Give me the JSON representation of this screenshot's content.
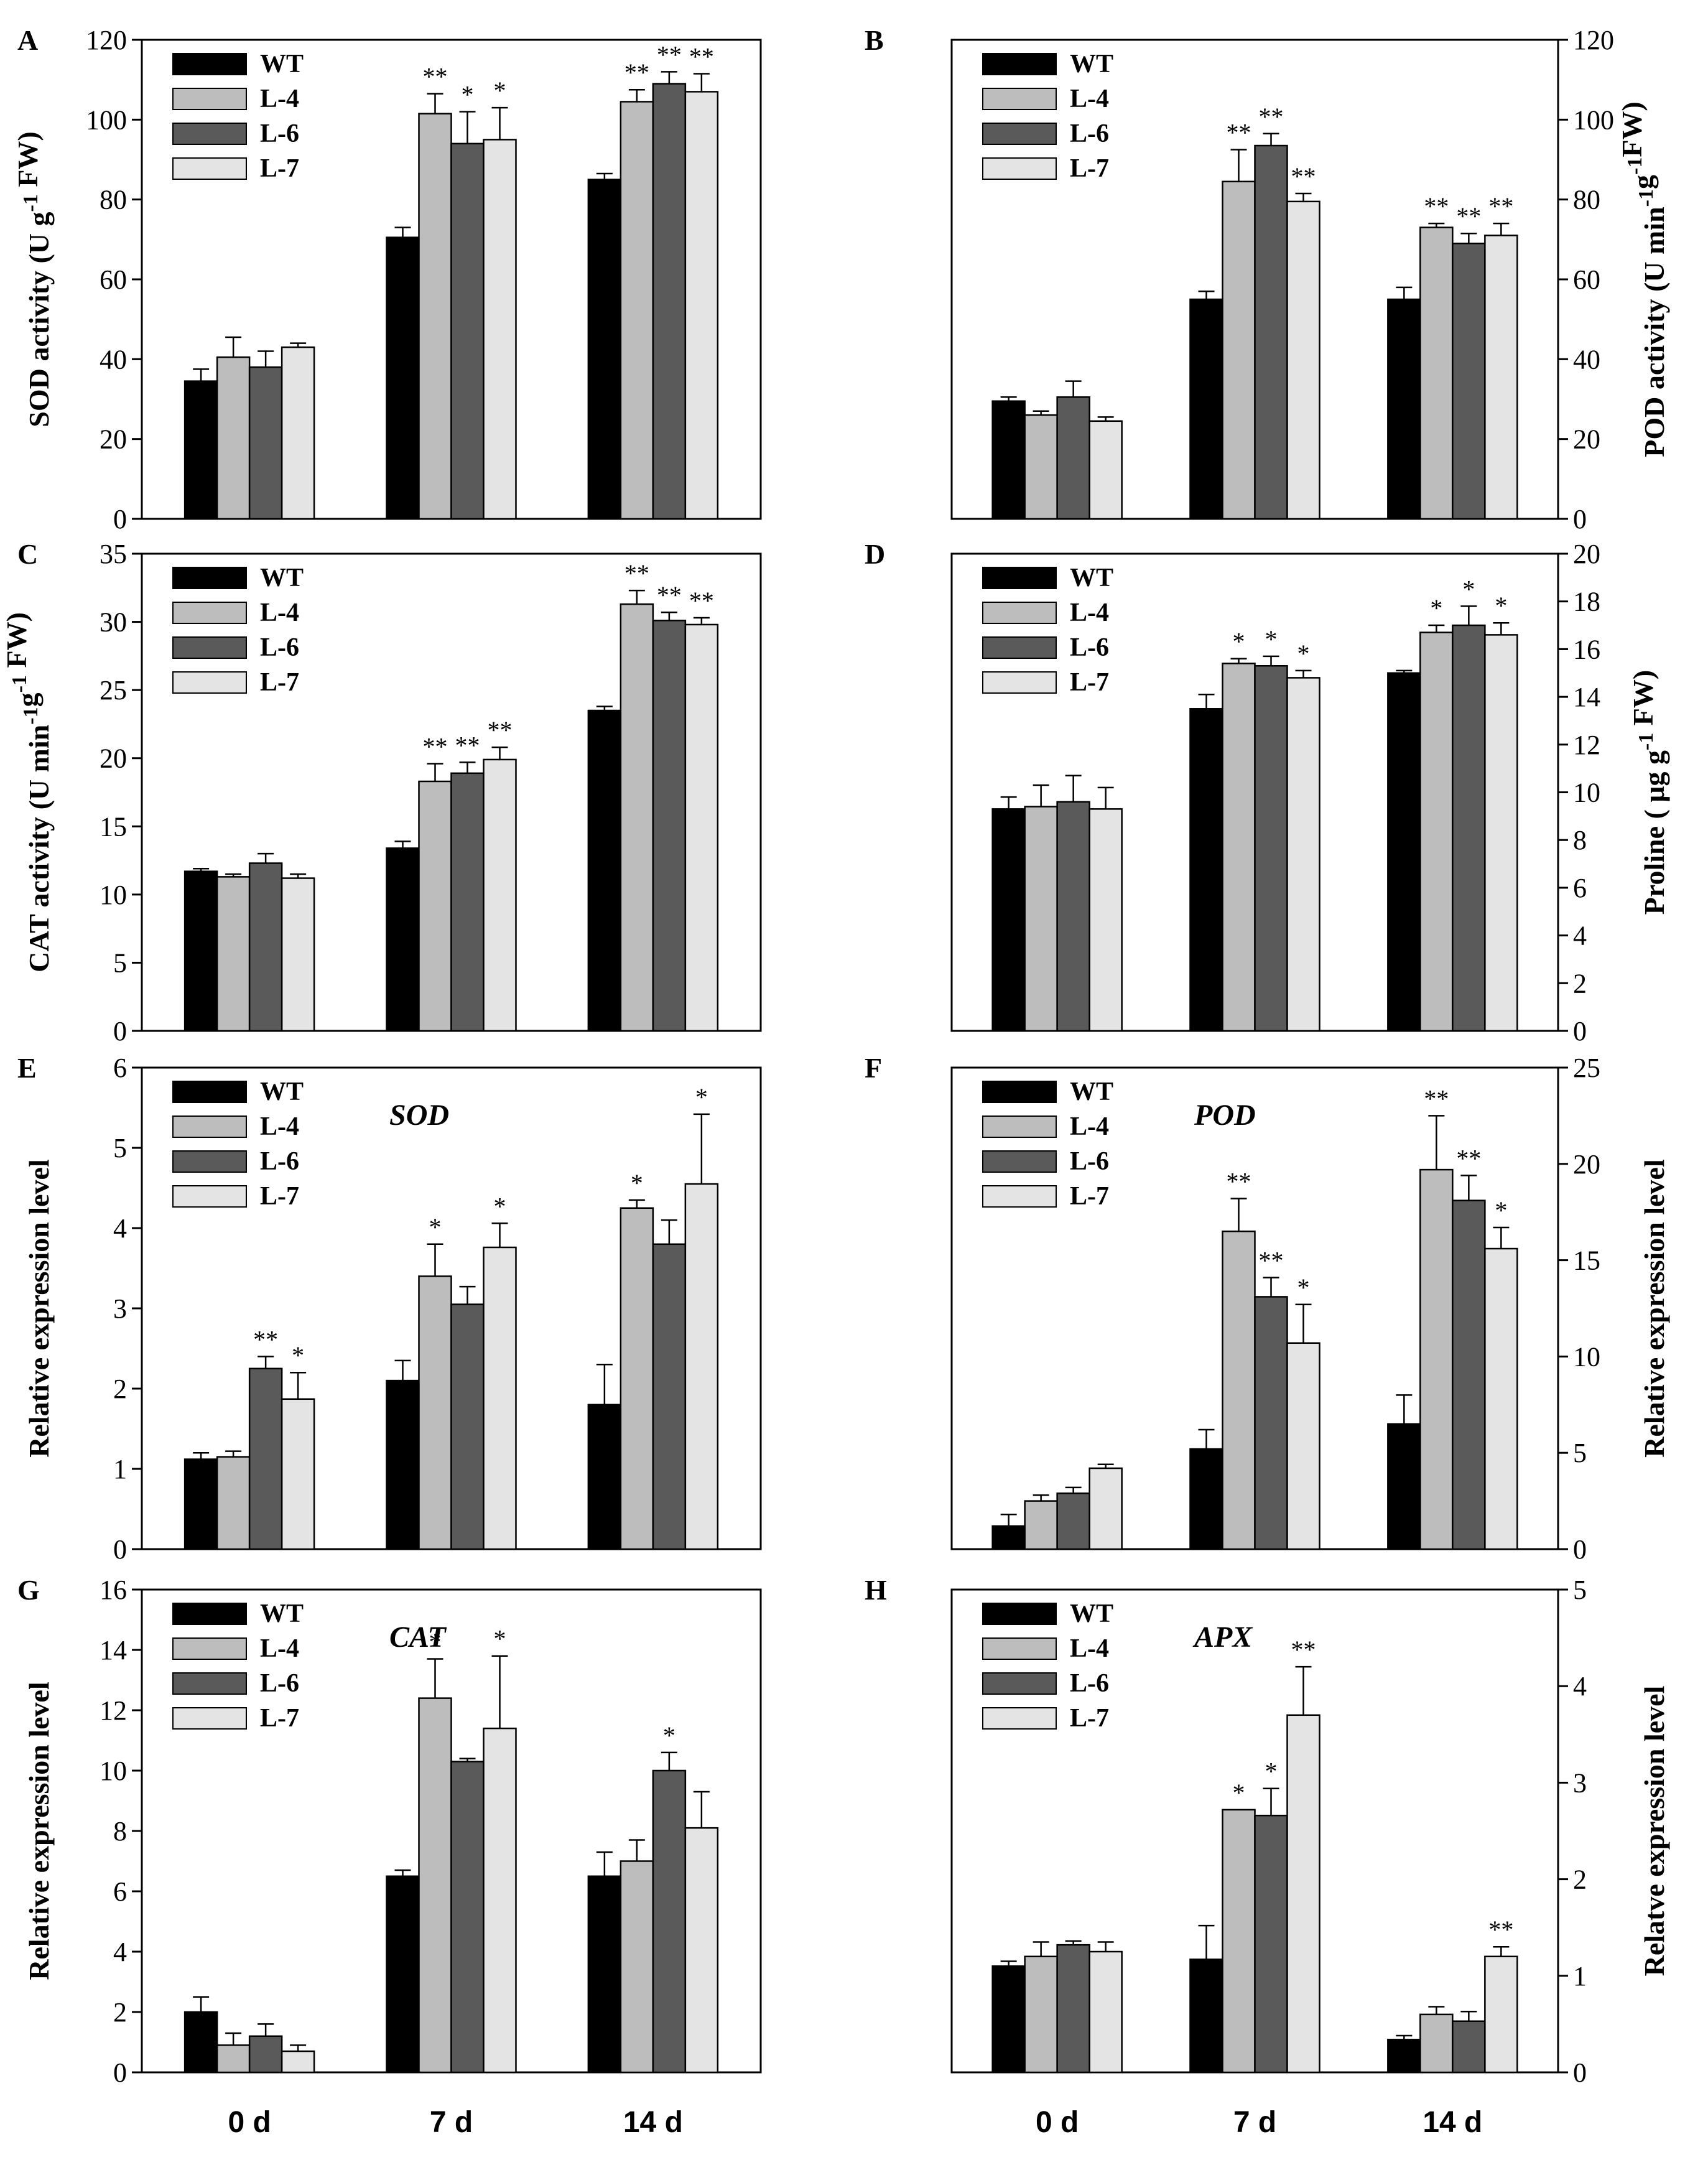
{
  "colors": {
    "WT": "#000000",
    "L-4": "#bdbdbd",
    "L-6": "#5a5a5a",
    "L-7": "#e4e4e4",
    "stroke": "#000000"
  },
  "chart_data": [
    {
      "panel": "A",
      "type": "bar",
      "title": "",
      "categories": [
        "0 d",
        "7 d",
        "14 d"
      ],
      "series": [
        {
          "name": "WT",
          "values": [
            34.5,
            70.5,
            85
          ],
          "errors": [
            3,
            2.5,
            1.5
          ],
          "sig": [
            "",
            "",
            ""
          ]
        },
        {
          "name": "L-4",
          "values": [
            40.5,
            101.5,
            104.5
          ],
          "errors": [
            5,
            5,
            3
          ],
          "sig": [
            "",
            "**",
            "**"
          ]
        },
        {
          "name": "L-6",
          "values": [
            38,
            94,
            109
          ],
          "errors": [
            4,
            8,
            3
          ],
          "sig": [
            "",
            "*",
            "**"
          ]
        },
        {
          "name": "L-7",
          "values": [
            43,
            95,
            107
          ],
          "errors": [
            1,
            8,
            4.5
          ],
          "sig": [
            "",
            "*",
            "**"
          ]
        }
      ],
      "ylabel": "SOD activity (U g-1 FW)",
      "ylim": [
        0,
        120
      ],
      "yticks": [
        0,
        20,
        40,
        60,
        80,
        100,
        120
      ],
      "axis_side": "left",
      "legend": "top-left"
    },
    {
      "panel": "B",
      "type": "bar",
      "title": "",
      "categories": [
        "0 d",
        "7 d",
        "14 d"
      ],
      "series": [
        {
          "name": "WT",
          "values": [
            29.5,
            55,
            55
          ],
          "errors": [
            1,
            2,
            3
          ],
          "sig": [
            "",
            "",
            ""
          ]
        },
        {
          "name": "L-4",
          "values": [
            26,
            84.5,
            73
          ],
          "errors": [
            1,
            8,
            1
          ],
          "sig": [
            "",
            "**",
            "**"
          ]
        },
        {
          "name": "L-6",
          "values": [
            30.5,
            93.5,
            69
          ],
          "errors": [
            4,
            3,
            2.5
          ],
          "sig": [
            "",
            "**",
            "**"
          ]
        },
        {
          "name": "L-7",
          "values": [
            24.5,
            79.5,
            71
          ],
          "errors": [
            1,
            2,
            3
          ],
          "sig": [
            "",
            "**",
            "**"
          ]
        }
      ],
      "ylabel": "POD activity (U min-1g-1FW)",
      "ylim": [
        0,
        120
      ],
      "yticks": [
        0,
        20,
        40,
        60,
        80,
        100,
        120
      ],
      "axis_side": "right",
      "legend": "top-left"
    },
    {
      "panel": "C",
      "type": "bar",
      "title": "",
      "categories": [
        "0 d",
        "7 d",
        "14 d"
      ],
      "series": [
        {
          "name": "WT",
          "values": [
            11.7,
            13.4,
            23.5
          ],
          "errors": [
            0.2,
            0.5,
            0.3
          ],
          "sig": [
            "",
            "",
            ""
          ]
        },
        {
          "name": "L-4",
          "values": [
            11.3,
            18.3,
            31.3
          ],
          "errors": [
            0.2,
            1.3,
            1
          ],
          "sig": [
            "",
            "**",
            "**"
          ]
        },
        {
          "name": "L-6",
          "values": [
            12.3,
            18.9,
            30.1
          ],
          "errors": [
            0.7,
            0.8,
            0.6
          ],
          "sig": [
            "",
            "**",
            "**"
          ]
        },
        {
          "name": "L-7",
          "values": [
            11.2,
            19.9,
            29.8
          ],
          "errors": [
            0.3,
            0.9,
            0.5
          ],
          "sig": [
            "",
            "**",
            "**"
          ]
        }
      ],
      "ylabel": "CAT activity (U min-1g-1 FW)",
      "ylim": [
        0,
        35
      ],
      "yticks": [
        0,
        5,
        10,
        15,
        20,
        25,
        30,
        35
      ],
      "axis_side": "left",
      "legend": "top-left"
    },
    {
      "panel": "D",
      "type": "bar",
      "title": "",
      "categories": [
        "0 d",
        "7 d",
        "14 d"
      ],
      "series": [
        {
          "name": "WT",
          "values": [
            9.3,
            13.5,
            15
          ],
          "errors": [
            0.5,
            0.6,
            0.1
          ],
          "sig": [
            "",
            "",
            ""
          ]
        },
        {
          "name": "L-4",
          "values": [
            9.4,
            15.4,
            16.7
          ],
          "errors": [
            0.9,
            0.2,
            0.3
          ],
          "sig": [
            "",
            "*",
            "*"
          ]
        },
        {
          "name": "L-6",
          "values": [
            9.6,
            15.3,
            17
          ],
          "errors": [
            1.1,
            0.4,
            0.8
          ],
          "sig": [
            "",
            "*",
            "*"
          ]
        },
        {
          "name": "L-7",
          "values": [
            9.3,
            14.8,
            16.6
          ],
          "errors": [
            0.9,
            0.3,
            0.5
          ],
          "sig": [
            "",
            "*",
            "*"
          ]
        }
      ],
      "ylabel": "Proline ( μg g-1 FW)",
      "ylim": [
        0,
        20
      ],
      "yticks": [
        0,
        2,
        4,
        6,
        8,
        10,
        12,
        14,
        16,
        18,
        20
      ],
      "axis_side": "right",
      "legend": "top-left"
    },
    {
      "panel": "E",
      "type": "bar",
      "title": "SOD",
      "categories": [
        "0 d",
        "7 d",
        "14 d"
      ],
      "series": [
        {
          "name": "WT",
          "values": [
            1.12,
            2.1,
            1.8
          ],
          "errors": [
            0.08,
            0.25,
            0.5
          ],
          "sig": [
            "",
            "",
            ""
          ]
        },
        {
          "name": "L-4",
          "values": [
            1.15,
            3.4,
            4.25
          ],
          "errors": [
            0.07,
            0.4,
            0.1
          ],
          "sig": [
            "",
            "*",
            "*"
          ]
        },
        {
          "name": "L-6",
          "values": [
            2.25,
            3.05,
            3.8
          ],
          "errors": [
            0.15,
            0.22,
            0.3
          ],
          "sig": [
            "**",
            "",
            ""
          ]
        },
        {
          "name": "L-7",
          "values": [
            1.87,
            3.76,
            4.55
          ],
          "errors": [
            0.33,
            0.3,
            0.87
          ],
          "sig": [
            "*",
            "*",
            "*"
          ]
        }
      ],
      "ylabel": "Relative expression level",
      "ylim": [
        0,
        6
      ],
      "yticks": [
        0,
        1,
        2,
        3,
        4,
        5,
        6
      ],
      "axis_side": "left",
      "legend": "top-left"
    },
    {
      "panel": "F",
      "type": "bar",
      "title": "POD",
      "categories": [
        "0 d",
        "7 d",
        "14 d"
      ],
      "series": [
        {
          "name": "WT",
          "values": [
            1.2,
            5.2,
            6.5
          ],
          "errors": [
            0.6,
            1,
            1.5
          ],
          "sig": [
            "",
            "",
            ""
          ]
        },
        {
          "name": "L-4",
          "values": [
            2.5,
            16.5,
            19.7
          ],
          "errors": [
            0.3,
            1.7,
            2.8
          ],
          "sig": [
            "",
            "**",
            "**"
          ]
        },
        {
          "name": "L-6",
          "values": [
            2.9,
            13.1,
            18.1
          ],
          "errors": [
            0.3,
            1,
            1.3
          ],
          "sig": [
            "",
            "**",
            "**"
          ]
        },
        {
          "name": "L-7",
          "values": [
            4.2,
            10.7,
            15.6
          ],
          "errors": [
            0.2,
            2,
            1.1
          ],
          "sig": [
            "",
            "*",
            "*"
          ]
        }
      ],
      "ylabel": "Relative expression level",
      "ylim": [
        0,
        25
      ],
      "yticks": [
        0,
        5,
        10,
        15,
        20,
        25
      ],
      "axis_side": "right",
      "legend": "top-left"
    },
    {
      "panel": "G",
      "type": "bar",
      "title": "CAT",
      "categories": [
        "0 d",
        "7 d",
        "14 d"
      ],
      "series": [
        {
          "name": "WT",
          "values": [
            2,
            6.5,
            6.5
          ],
          "errors": [
            0.5,
            0.2,
            0.8
          ],
          "sig": [
            "",
            "",
            ""
          ]
        },
        {
          "name": "L-4",
          "values": [
            0.9,
            12.4,
            7
          ],
          "errors": [
            0.4,
            1.3,
            0.7
          ],
          "sig": [
            "",
            "*",
            ""
          ]
        },
        {
          "name": "L-6",
          "values": [
            1.2,
            10.3,
            10
          ],
          "errors": [
            0.4,
            0.1,
            0.6
          ],
          "sig": [
            "",
            "",
            "*"
          ]
        },
        {
          "name": "L-7",
          "values": [
            0.7,
            11.4,
            8.1
          ],
          "errors": [
            0.2,
            2.4,
            1.2
          ],
          "sig": [
            "",
            "*",
            ""
          ]
        }
      ],
      "ylabel": "Relative expression level",
      "ylim": [
        0,
        16
      ],
      "yticks": [
        0,
        2,
        4,
        6,
        8,
        10,
        12,
        14,
        16
      ],
      "axis_side": "left",
      "legend": "top-left",
      "xlabels_shown": true
    },
    {
      "panel": "H",
      "type": "bar",
      "title": "APX",
      "categories": [
        "0 d",
        "7 d",
        "14 d"
      ],
      "series": [
        {
          "name": "WT",
          "values": [
            1.1,
            1.17,
            0.34
          ],
          "errors": [
            0.05,
            0.35,
            0.04
          ],
          "sig": [
            "",
            "",
            ""
          ]
        },
        {
          "name": "L-4",
          "values": [
            1.2,
            2.72,
            0.6
          ],
          "errors": [
            0.15,
            0,
            0.08
          ],
          "sig": [
            "",
            "*",
            ""
          ]
        },
        {
          "name": "L-6",
          "values": [
            1.32,
            2.66,
            0.53
          ],
          "errors": [
            0.04,
            0.28,
            0.1
          ],
          "sig": [
            "",
            "*",
            ""
          ]
        },
        {
          "name": "L-7",
          "values": [
            1.25,
            3.7,
            1.2
          ],
          "errors": [
            0.1,
            0.5,
            0.1
          ],
          "sig": [
            "",
            "**",
            "**"
          ]
        }
      ],
      "ylabel": "Relatve expression level",
      "ylim": [
        0,
        5
      ],
      "yticks": [
        0,
        1,
        2,
        3,
        4,
        5
      ],
      "axis_side": "right",
      "legend": "top-left",
      "xlabels_shown": true
    }
  ]
}
